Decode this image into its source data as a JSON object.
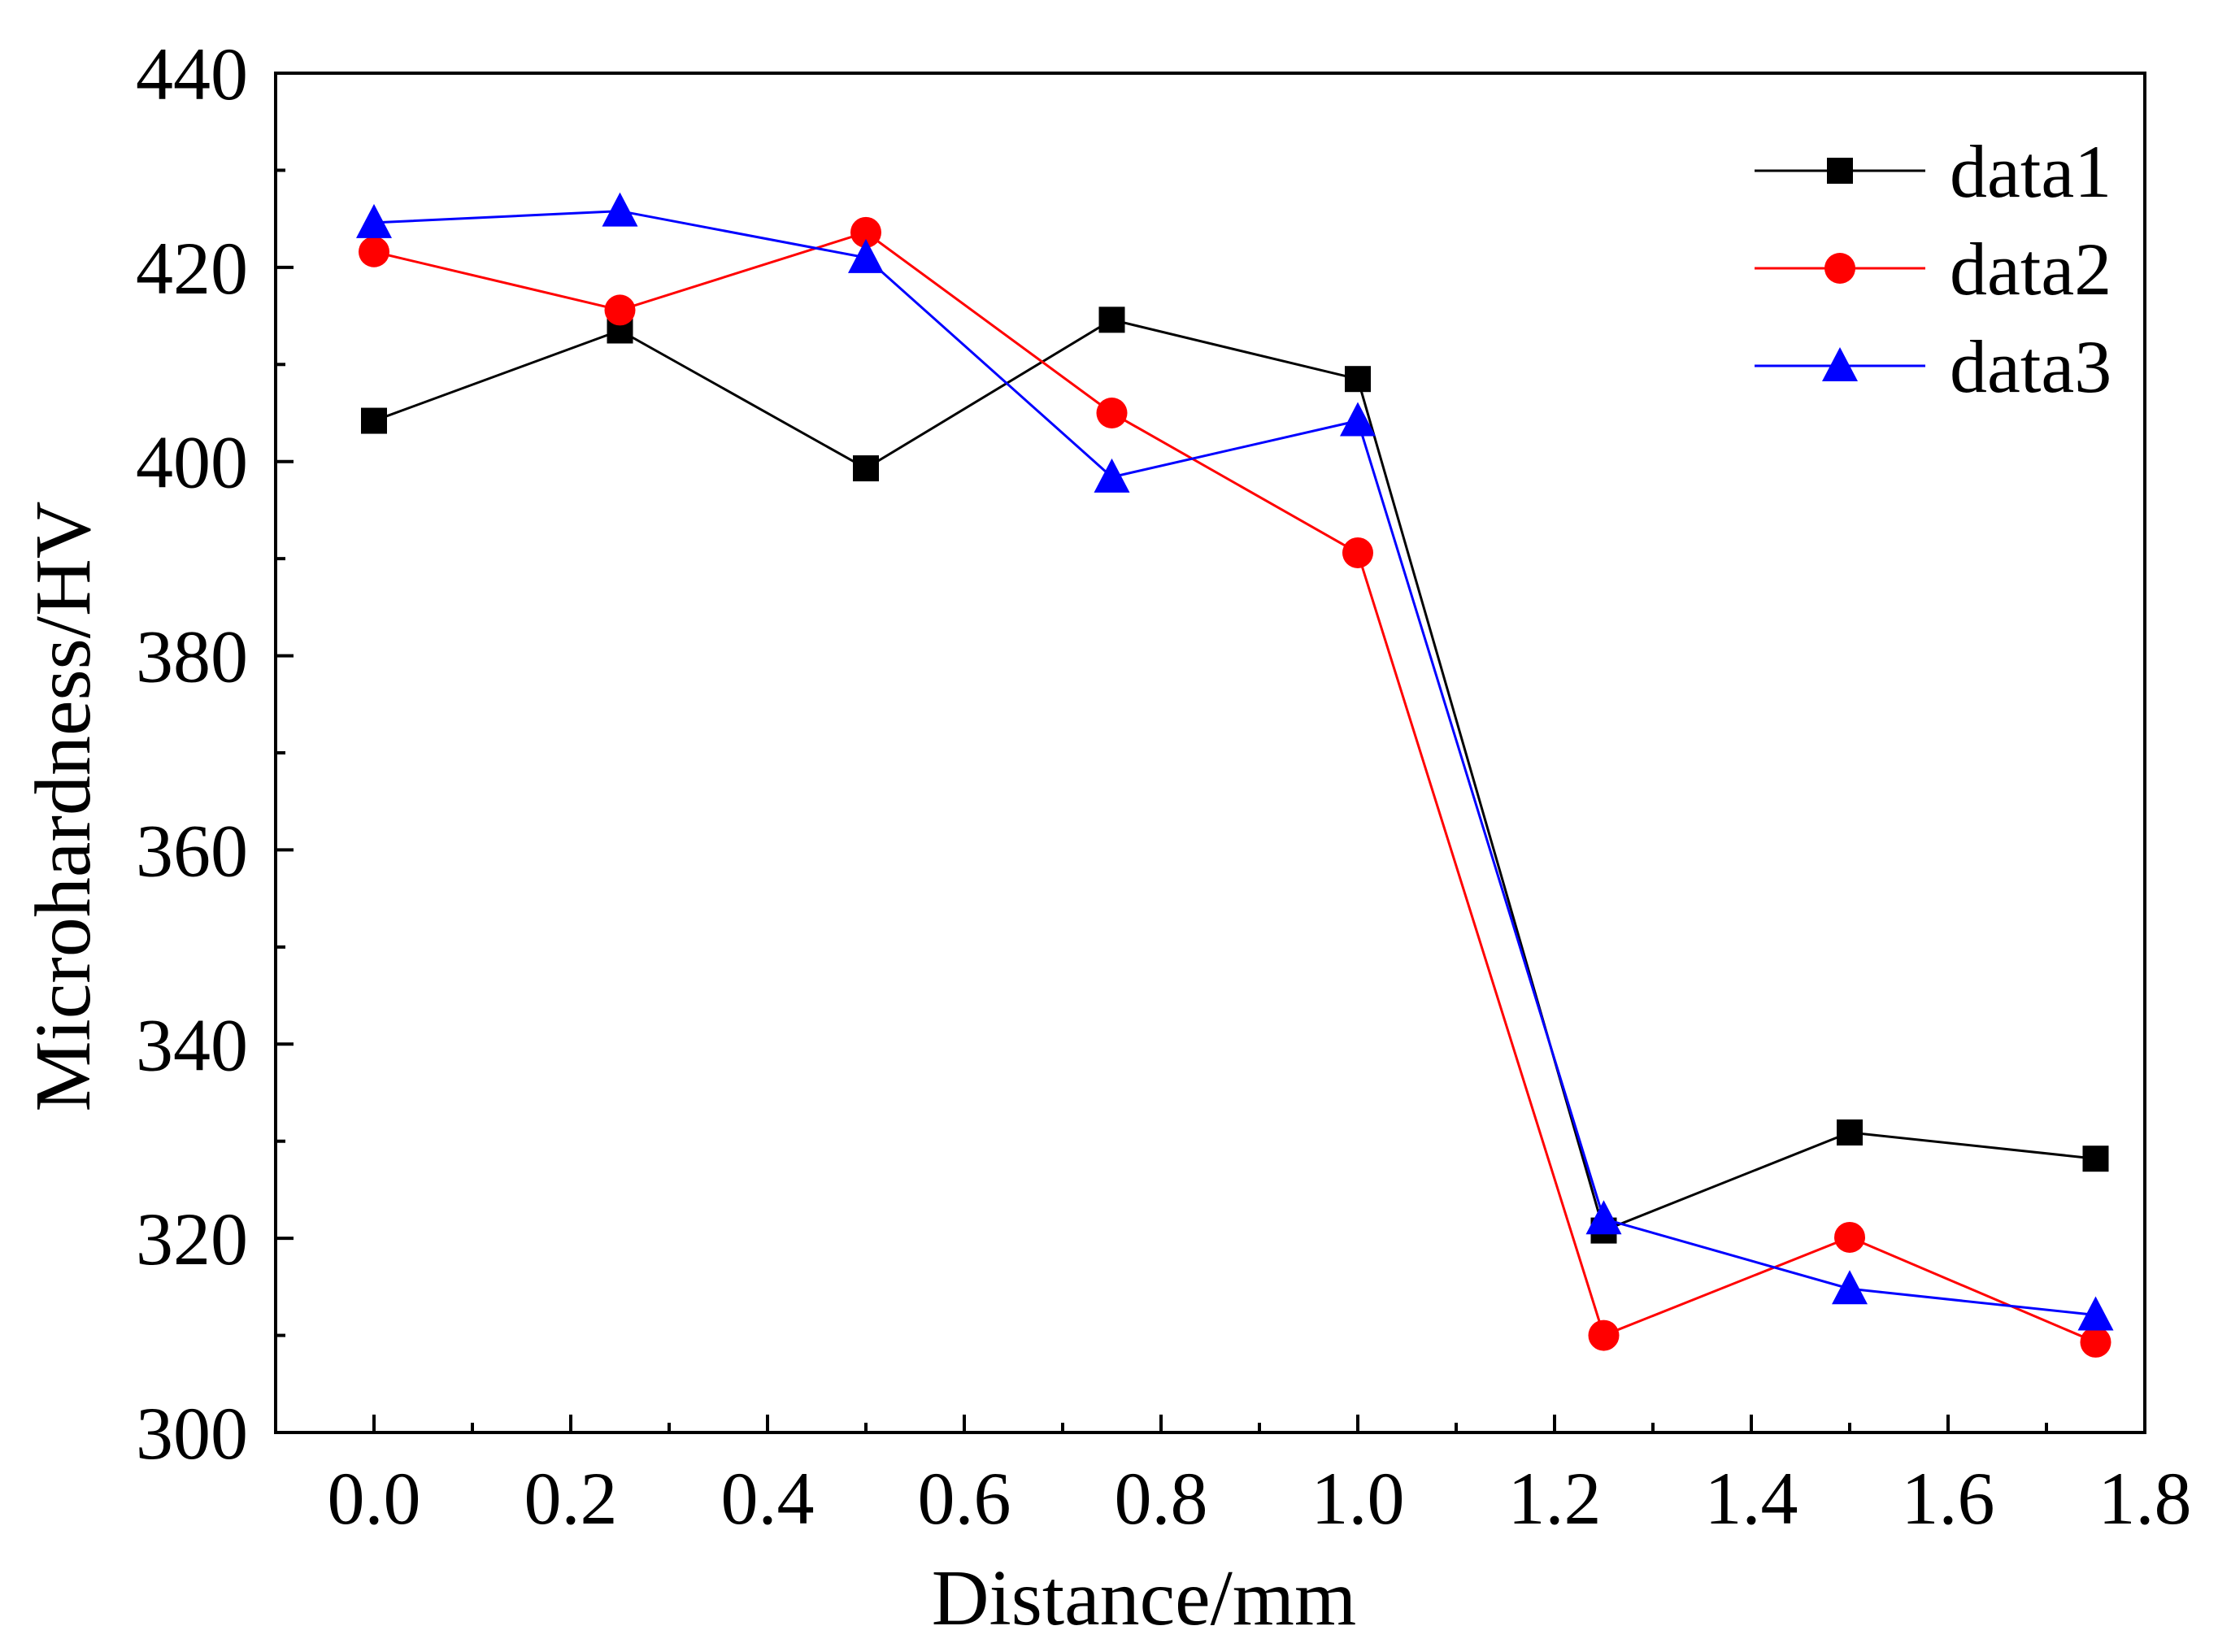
{
  "chart_data": {
    "type": "line",
    "title": "",
    "xlabel": "Distance/mm",
    "ylabel": "Microhardness/HV",
    "xlim": [
      -0.1,
      1.8
    ],
    "ylim": [
      300,
      440
    ],
    "xticks": [
      0.0,
      0.2,
      0.4,
      0.6,
      0.8,
      1.0,
      1.2,
      1.4,
      1.6,
      1.8
    ],
    "xtick_labels": [
      "0.0",
      "0.2",
      "0.4",
      "0.6",
      "0.8",
      "1.0",
      "1.2",
      "1.4",
      "1.6",
      "1.8"
    ],
    "yticks": [
      300,
      320,
      340,
      360,
      380,
      400,
      420,
      440
    ],
    "ytick_labels": [
      "300",
      "320",
      "340",
      "360",
      "380",
      "400",
      "420",
      "440"
    ],
    "grid": false,
    "legend_position": "top-right",
    "x": [
      0.0,
      0.25,
      0.5,
      0.75,
      1.0,
      1.25,
      1.5,
      1.75
    ],
    "series": [
      {
        "name": "data1",
        "color": "#000000",
        "marker": "square",
        "values": [
          404.2,
          413.5,
          399.3,
          414.6,
          408.5,
          320.8,
          330.9,
          328.2
        ]
      },
      {
        "name": "data2",
        "color": "#ff0000",
        "marker": "circle",
        "values": [
          421.6,
          415.6,
          423.6,
          405.0,
          390.6,
          310.0,
          320.1,
          309.3
        ]
      },
      {
        "name": "data3",
        "color": "#0000ff",
        "marker": "triangle",
        "values": [
          424.6,
          425.8,
          421.0,
          398.4,
          404.2,
          322.0,
          314.8,
          312.1
        ]
      }
    ]
  }
}
